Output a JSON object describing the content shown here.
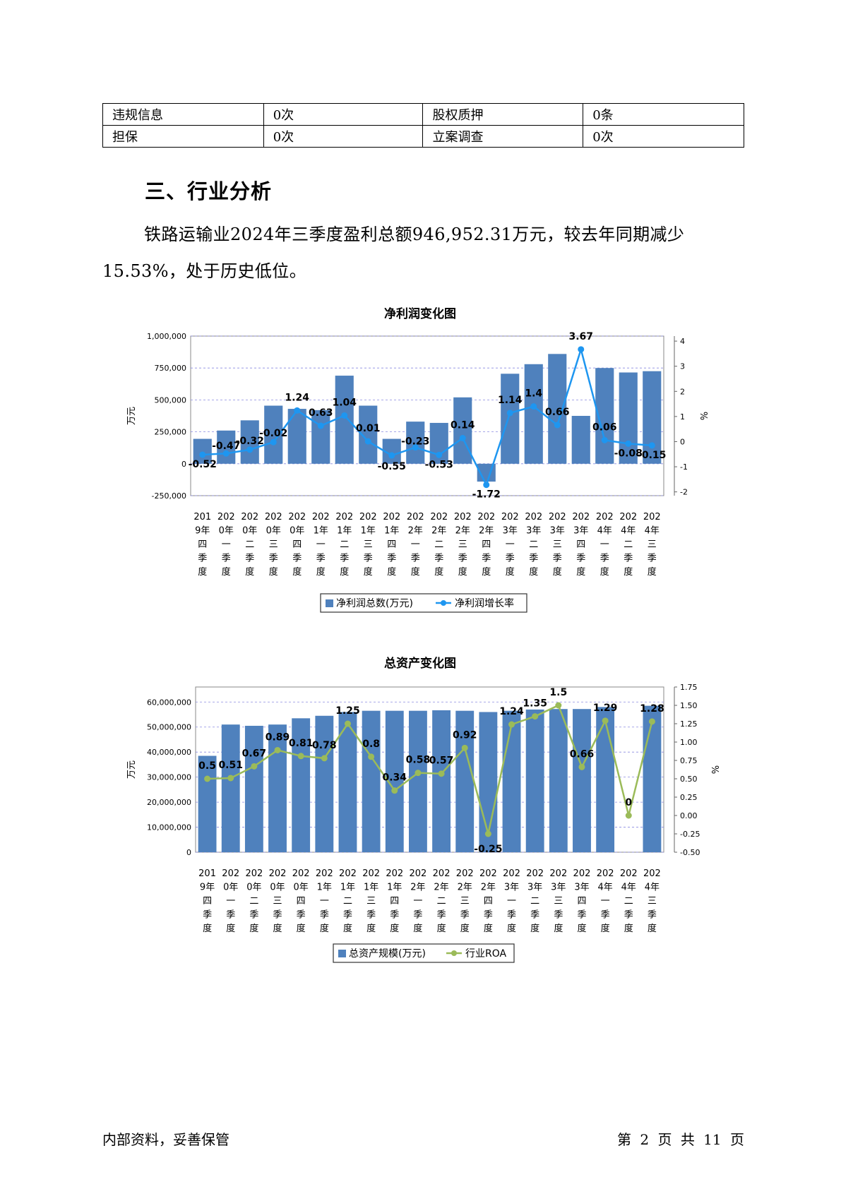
{
  "info_table": {
    "rows": [
      [
        {
          "label": "违规信息",
          "value": "0次"
        },
        {
          "label": "股权质押",
          "value": "0条"
        }
      ],
      [
        {
          "label": "担保",
          "value": "0次"
        },
        {
          "label": "立案调查",
          "value": "0次"
        }
      ]
    ]
  },
  "section": {
    "heading": "三、行业分析",
    "paragraph": "铁路运输业2024年三季度盈利总额946,952.31万元，较去年同期减少15.53%，处于历史低位。"
  },
  "footer": {
    "left": "内部资料，妥善保管",
    "right": "第 2 页   共 11 页"
  },
  "chart_data": [
    {
      "type": "bar",
      "title": "净利润变化图",
      "ylabel": "万元",
      "y2label": "%",
      "ylim": [
        -250000,
        1000000
      ],
      "y2lim": [
        -2.15,
        4.2
      ],
      "yticks": [
        "1,000,000",
        "750,000",
        "500,000",
        "250,000",
        "0",
        "-250,000"
      ],
      "y2ticks": [
        "4",
        "3",
        "2",
        "1",
        "0",
        "-1",
        "-2"
      ],
      "categories": [
        "2019年四季度",
        "2020年一季度",
        "2020年二季度",
        "2020年三季度",
        "2020年四季度",
        "2021年一季度",
        "2021年二季度",
        "2021年三季度",
        "2021年四季度",
        "2022年一季度",
        "2022年二季度",
        "2022年三季度",
        "2022年四季度",
        "2023年一季度",
        "2023年二季度",
        "2023年三季度",
        "2023年四季度",
        "2024年一季度",
        "2024年二季度",
        "2024年三季度"
      ],
      "series": [
        {
          "name": "净利润总数(万元)",
          "kind": "bar",
          "color": "#4f81bd",
          "values": [
            195000,
            260000,
            340000,
            455000,
            430000,
            420000,
            690000,
            455000,
            195000,
            330000,
            320000,
            520000,
            -140000,
            705000,
            780000,
            860000,
            375000,
            750000,
            715000,
            725000
          ]
        },
        {
          "name": "净利润增长率",
          "kind": "line",
          "color": "#1e96f0",
          "values": [
            -0.52,
            -0.47,
            -0.32,
            -0.02,
            1.24,
            0.63,
            1.04,
            0.01,
            -0.55,
            -0.23,
            -0.53,
            0.14,
            -1.72,
            1.14,
            1.4,
            0.66,
            3.67,
            0.06,
            -0.08,
            -0.15
          ]
        }
      ],
      "legend": "bottom"
    },
    {
      "type": "bar",
      "title": "总资产变化图",
      "ylabel": "万元",
      "y2label": "%",
      "ylim": [
        0,
        66000000
      ],
      "y2lim": [
        -0.5,
        1.75
      ],
      "yticks": [
        "60,000,000",
        "50,000,000",
        "40,000,000",
        "30,000,000",
        "20,000,000",
        "10,000,000",
        "0"
      ],
      "y2ticks": [
        "1.75",
        "1.50",
        "1.25",
        "1.00",
        "0.75",
        "0.50",
        "0.25",
        "0.00",
        "-0.25",
        "-0.50"
      ],
      "categories": [
        "2019年四季度",
        "2020年一季度",
        "2020年二季度",
        "2020年三季度",
        "2020年四季度",
        "2021年一季度",
        "2021年二季度",
        "2021年三季度",
        "2021年四季度",
        "2022年一季度",
        "2022年二季度",
        "2022年三季度",
        "2022年四季度",
        "2023年一季度",
        "2023年二季度",
        "2023年三季度",
        "2023年四季度",
        "2024年一季度",
        "2024年二季度",
        "2024年三季度"
      ],
      "series": [
        {
          "name": "总资产规模(万元)",
          "kind": "bar",
          "color": "#4f81bd",
          "values": [
            38500000,
            51000000,
            50500000,
            51000000,
            53500000,
            54500000,
            56000000,
            56500000,
            56500000,
            56500000,
            56700000,
            56500000,
            56000000,
            56500000,
            57000000,
            57200000,
            57200000,
            58000000,
            0,
            58500000
          ]
        },
        {
          "name": "行业ROA",
          "kind": "line",
          "color": "#9bbb59",
          "values": [
            0.5,
            0.51,
            0.67,
            0.89,
            0.81,
            0.78,
            1.25,
            0.8,
            0.34,
            0.58,
            0.57,
            0.92,
            -0.25,
            1.24,
            1.35,
            1.5,
            0.66,
            1.29,
            0,
            1.28
          ]
        }
      ],
      "legend": "bottom"
    }
  ]
}
